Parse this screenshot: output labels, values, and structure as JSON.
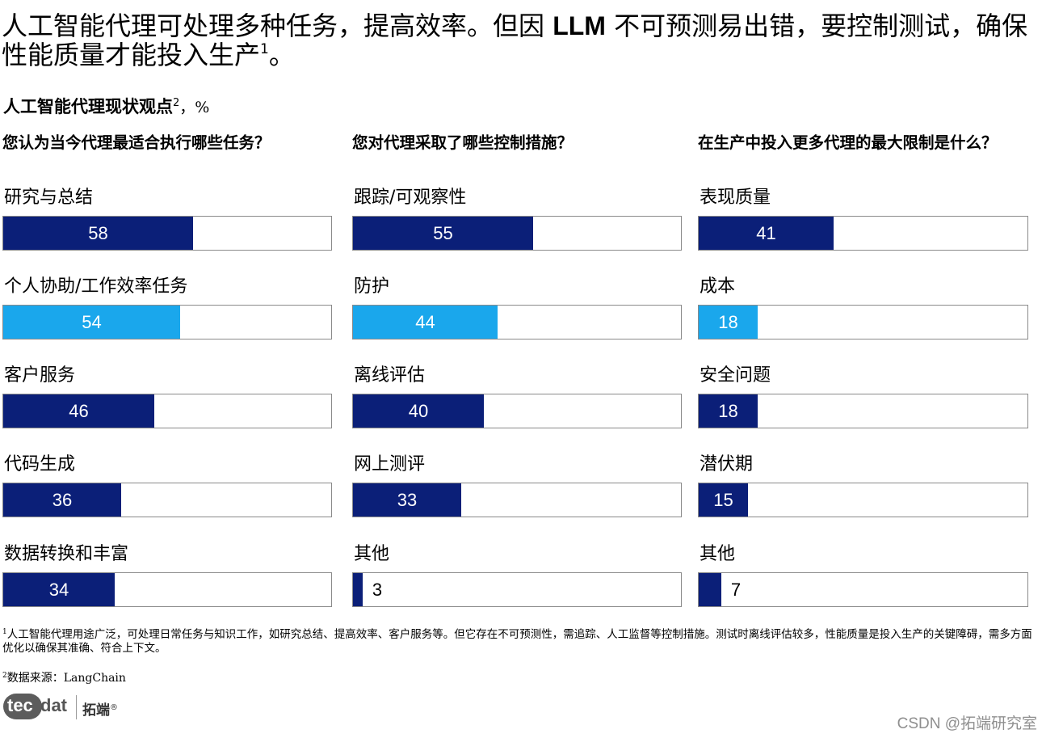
{
  "header": {
    "title_part1": "人工智能代理可处理多种任务，提高效率。但因 ",
    "title_bold": "LLM",
    "title_part2": " 不可预测易出错，要控制测试，确保性能质量才能投入生产",
    "title_footnote_mark": "1",
    "title_end": "。",
    "subtitle": "人工智能代理现状观点",
    "subtitle_footnote_mark": "2",
    "subtitle_unit": "，%"
  },
  "colors": {
    "dark_bar": "#0b1f78",
    "light_bar": "#1aa7ec",
    "frame": "#8a8a8a"
  },
  "chart_data": [
    {
      "type": "bar",
      "orientation": "horizontal",
      "title": "您认为当今代理最适合执行哪些任务？",
      "categories": [
        "研究与总结",
        "个人协助/工作效率任务",
        "客户服务",
        "代码生成",
        "数据转换和丰富"
      ],
      "values": [
        58,
        54,
        46,
        36,
        34
      ],
      "colors": [
        "dark",
        "light",
        "dark",
        "dark",
        "dark"
      ],
      "xlim": [
        0,
        100
      ],
      "unit": "%"
    },
    {
      "type": "bar",
      "orientation": "horizontal",
      "title": "您对代理采取了哪些控制措施？",
      "categories": [
        "跟踪/可观察性",
        "防护",
        "离线评估",
        "网上测评",
        "其他"
      ],
      "values": [
        55,
        44,
        40,
        33,
        3
      ],
      "colors": [
        "dark",
        "light",
        "dark",
        "dark",
        "dark"
      ],
      "xlim": [
        0,
        100
      ],
      "unit": "%"
    },
    {
      "type": "bar",
      "orientation": "horizontal",
      "title": "在生产中投入更多代理的最大限制是什么？",
      "categories": [
        "表现质量",
        "成本",
        "安全问题",
        "潜伏期",
        "其他"
      ],
      "values": [
        41,
        18,
        18,
        15,
        7
      ],
      "colors": [
        "dark",
        "light",
        "dark",
        "dark",
        "dark"
      ],
      "xlim": [
        0,
        100
      ],
      "unit": "%"
    }
  ],
  "footnotes": {
    "note1_mark": "1",
    "note1": "人工智能代理用途广泛，可处理日常任务与知识工作，如研究总结、提高效率、客户服务等。但它存在不可预测性，需追踪、人工监督等控制措施。测试时离线评估较多，性能质量是投入生产的关键障碍，需多方面优化以确保其准确、符合上下文。",
    "note2_mark": "2",
    "note2": "数据来源：LangChain"
  },
  "branding": {
    "logo_mark": "tec",
    "logo_text": "dat",
    "logo_cn": "拓端",
    "logo_reg": "®",
    "watermark": "CSDN @拓端研究室"
  }
}
